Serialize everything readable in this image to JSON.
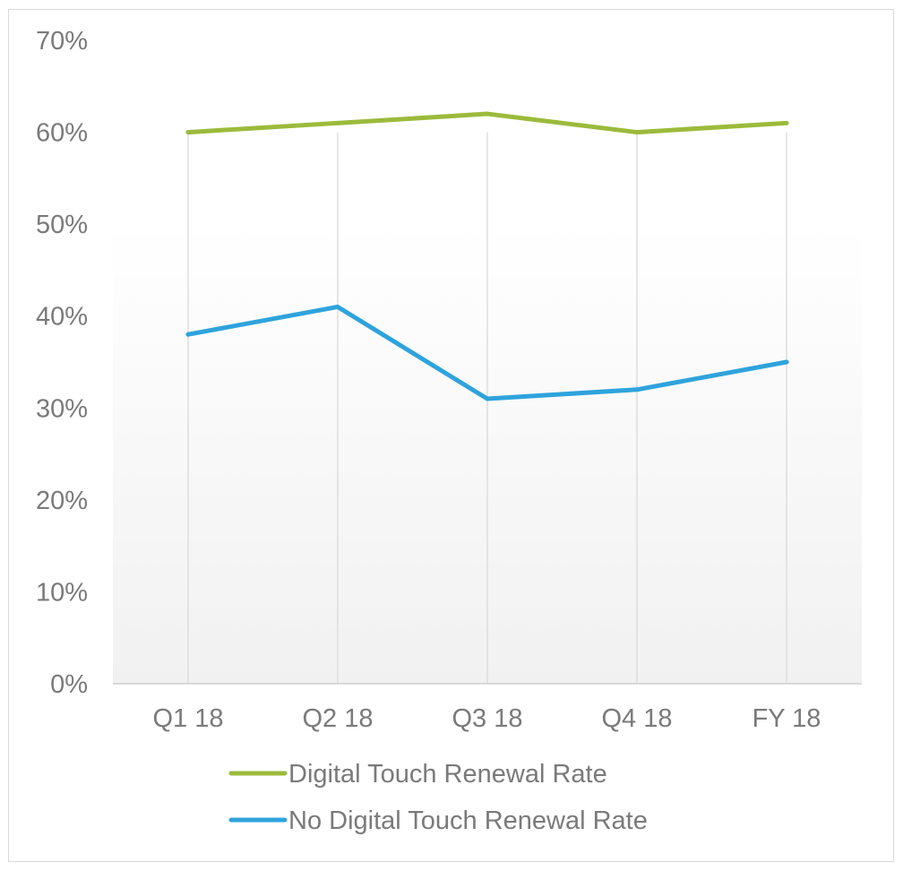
{
  "chart_data": {
    "type": "line",
    "title": "",
    "xlabel": "",
    "ylabel": "",
    "categories": [
      "Q1 18",
      "Q2 18",
      "Q3 18",
      "Q4 18",
      "FY 18"
    ],
    "ylim": [
      0,
      70
    ],
    "yticks": [
      0,
      10,
      20,
      30,
      40,
      50,
      60,
      70
    ],
    "ytick_format": "%",
    "grid": "vertical",
    "legend_position": "bottom",
    "series": [
      {
        "name": "Digital Touch Renewal Rate",
        "color": "#9bbb3b",
        "values": [
          60,
          61,
          62,
          60,
          61
        ]
      },
      {
        "name": "No Digital Touch Renewal Rate",
        "color": "#2ea3dc",
        "values": [
          38,
          41,
          31,
          32,
          35
        ]
      }
    ]
  }
}
